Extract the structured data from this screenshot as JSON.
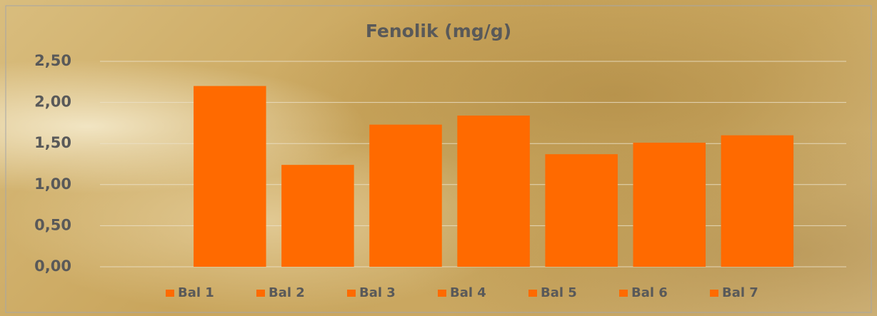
{
  "chart_data": {
    "type": "bar",
    "title": "Fenolik (mg/g)",
    "categories": [
      null
    ],
    "series": [
      {
        "name": "Bal 1",
        "color": "#ff6a00",
        "values": [
          2.2
        ]
      },
      {
        "name": "Bal 2",
        "color": "#ff6a00",
        "values": [
          1.24
        ]
      },
      {
        "name": "Bal 3",
        "color": "#ff6a00",
        "values": [
          1.73
        ]
      },
      {
        "name": "Bal 4",
        "color": "#ff6a00",
        "values": [
          1.84
        ]
      },
      {
        "name": "Bal 5",
        "color": "#ff6a00",
        "values": [
          1.37
        ]
      },
      {
        "name": "Bal 6",
        "color": "#ff6a00",
        "values": [
          1.51
        ]
      },
      {
        "name": "Bal 7",
        "color": "#ff6a00",
        "values": [
          1.6
        ]
      }
    ],
    "ylim": [
      0,
      2.5
    ],
    "yticks": [
      {
        "value": 0,
        "label": "0,00"
      },
      {
        "value": 0.5,
        "label": "0,50"
      },
      {
        "value": 1,
        "label": "1,00"
      },
      {
        "value": 1.5,
        "label": "1,50"
      },
      {
        "value": 2,
        "label": "2,00"
      },
      {
        "value": 2.5,
        "label": "2,50"
      }
    ],
    "grid": true,
    "legend": "bottom"
  }
}
